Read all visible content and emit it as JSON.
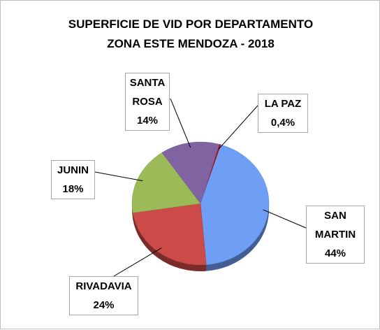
{
  "chart_data": {
    "type": "pie",
    "title": [
      "SUPERFICIE DE VID POR DEPARTAMENTO",
      "ZONA ESTE MENDOZA - 2018"
    ],
    "categories": [
      "LA PAZ",
      "SAN MARTIN",
      "RIVADAVIA",
      "JUNIN",
      "SANTA ROSA"
    ],
    "values": [
      0.4,
      44,
      24,
      18,
      14
    ],
    "value_labels": [
      "0,4%",
      "44%",
      "24%",
      "18%",
      "14%"
    ],
    "colors": [
      "#c00000",
      "#6f9ef5",
      "#cc4b48",
      "#9bbb59",
      "#8064a2"
    ]
  }
}
